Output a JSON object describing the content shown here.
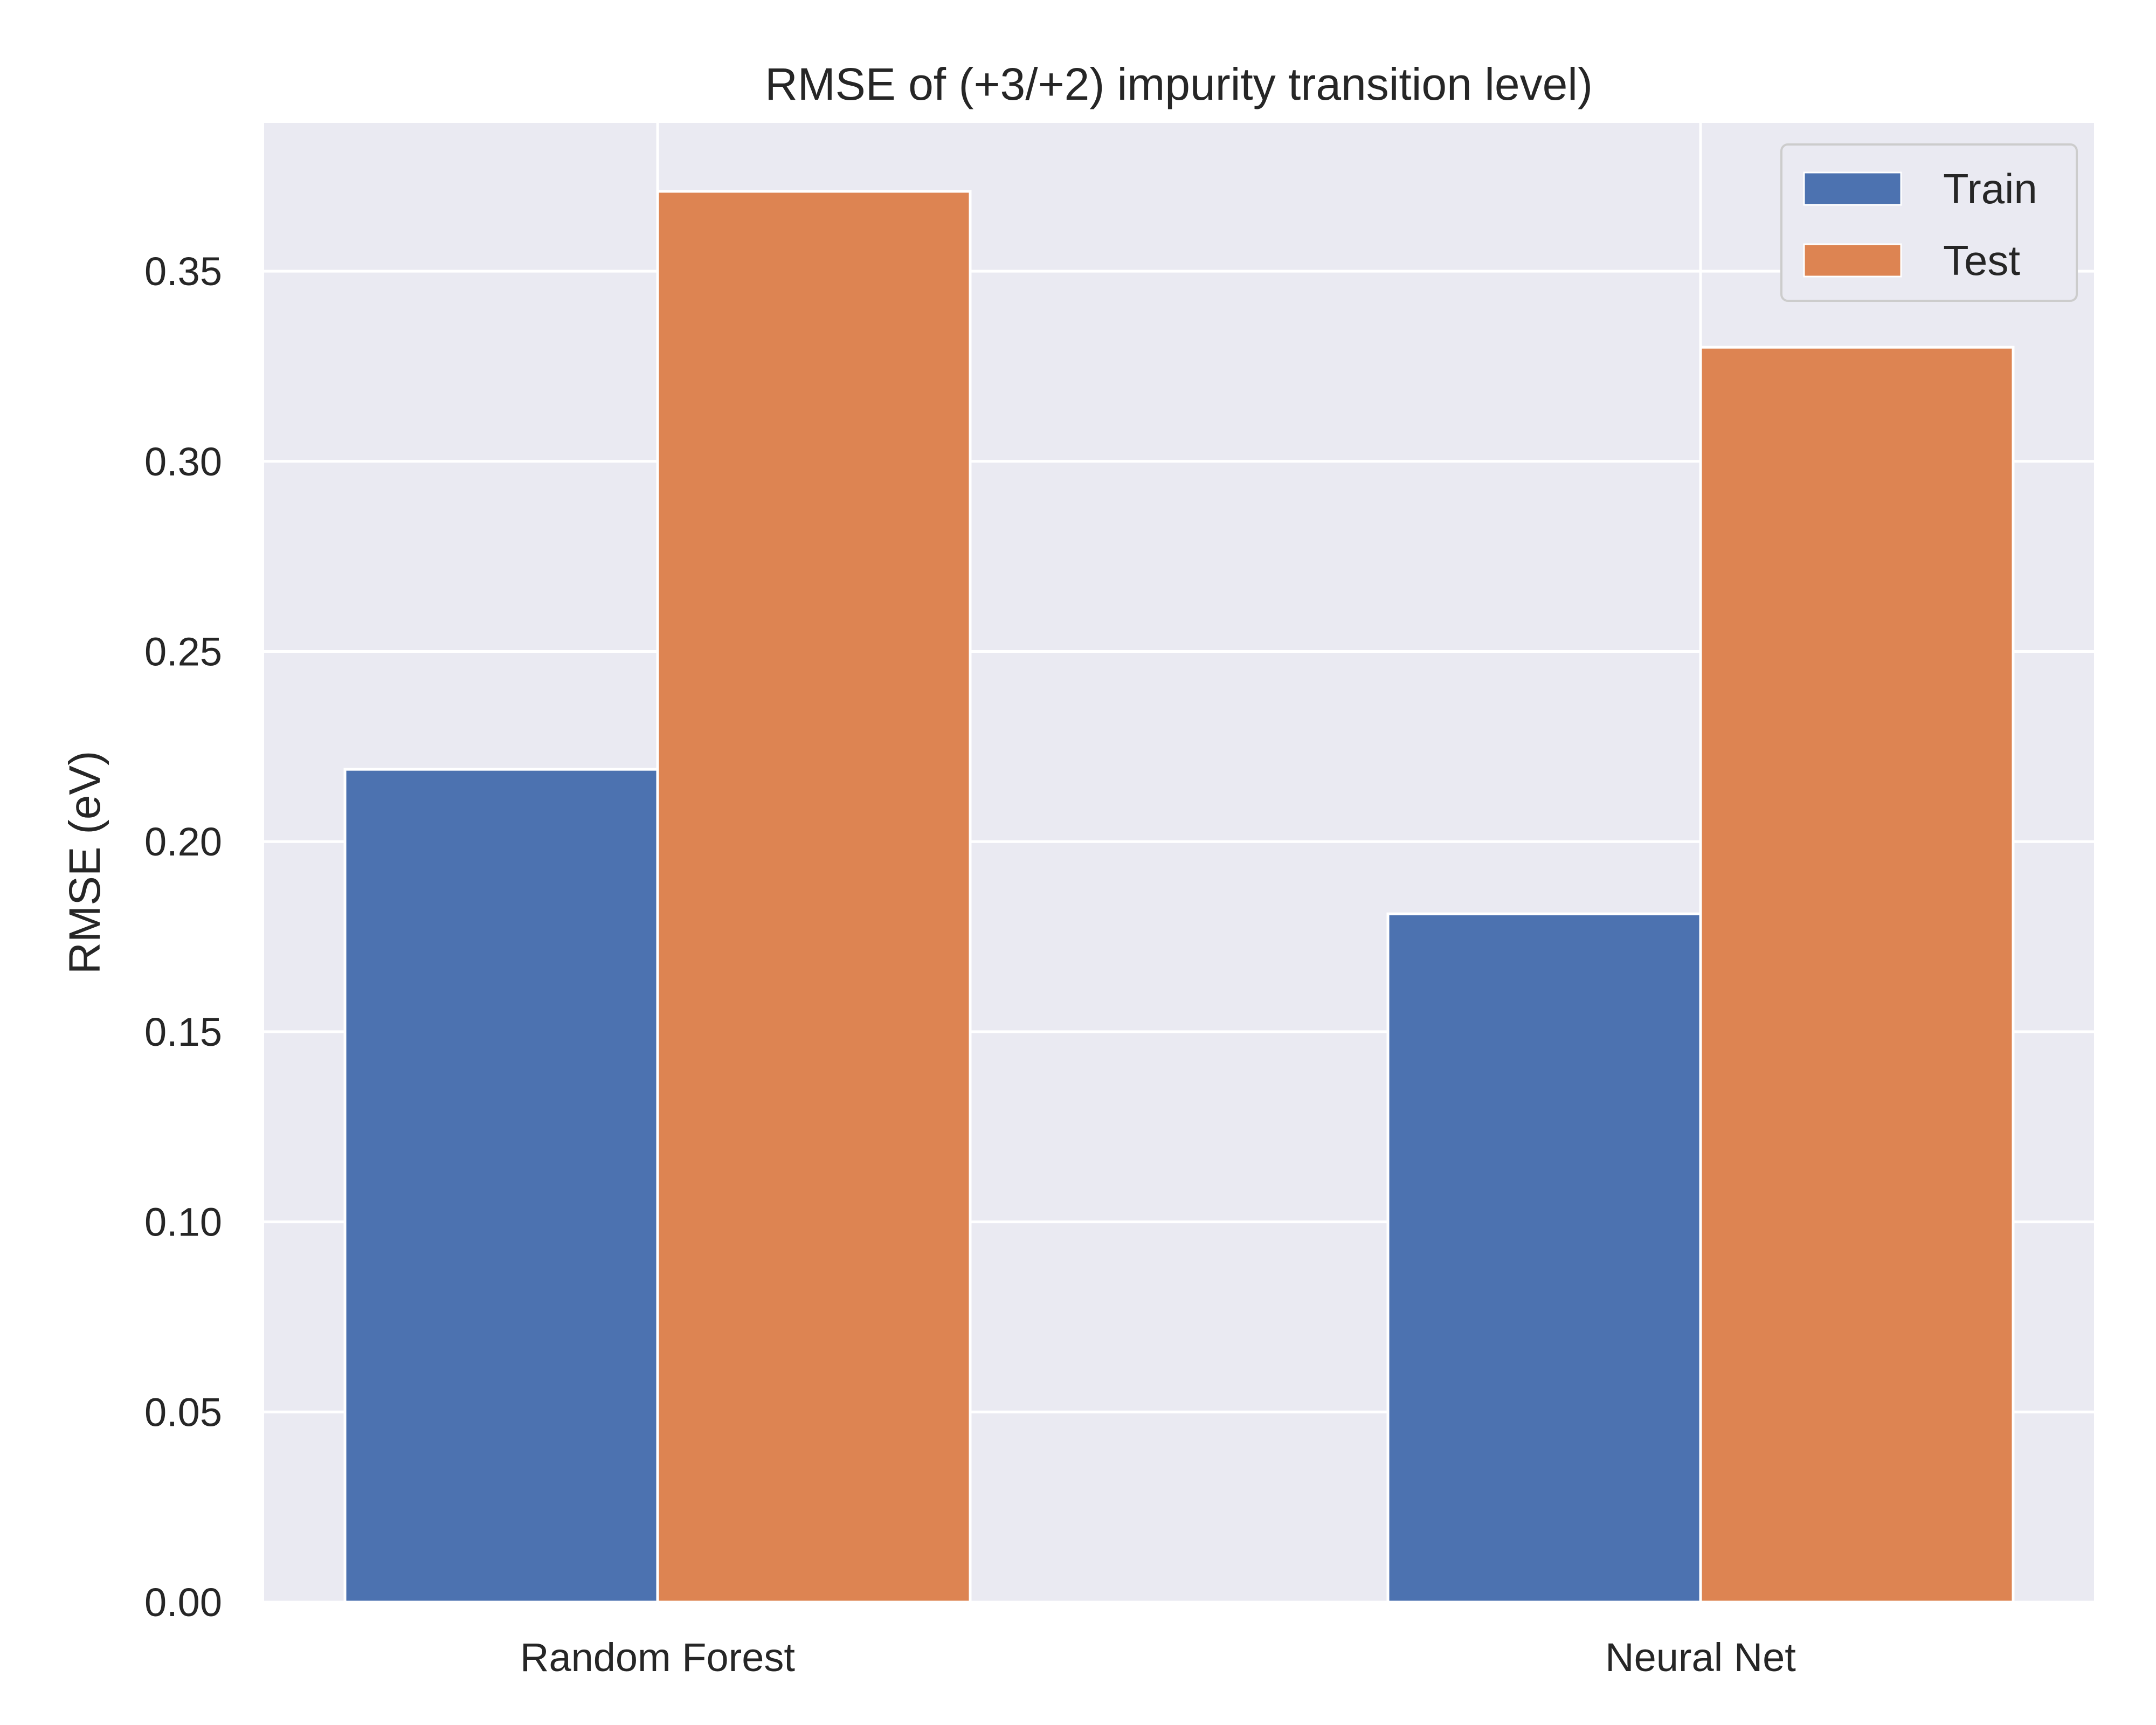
{
  "chart_data": {
    "type": "bar",
    "title": "RMSE of (+3/+2) impurity transition level)",
    "xlabel": "",
    "ylabel": "RMSE (eV)",
    "categories": [
      "Random Forest",
      "Neural Net"
    ],
    "series": [
      {
        "name": "Train",
        "values": [
          0.219,
          0.181
        ],
        "color": "#4c72b0"
      },
      {
        "name": "Test",
        "values": [
          0.371,
          0.33
        ],
        "color": "#dd8452"
      }
    ],
    "ylim": [
      0,
      0.389
    ],
    "yticks": [
      0.0,
      0.05,
      0.1,
      0.15,
      0.2,
      0.25,
      0.3,
      0.35
    ],
    "ytick_labels": [
      "0.00",
      "0.05",
      "0.10",
      "0.15",
      "0.20",
      "0.25",
      "0.30",
      "0.35"
    ],
    "grid": true,
    "legend_position": "top-right",
    "background_color": "#eaeaf2",
    "grid_color": "#ffffff"
  }
}
